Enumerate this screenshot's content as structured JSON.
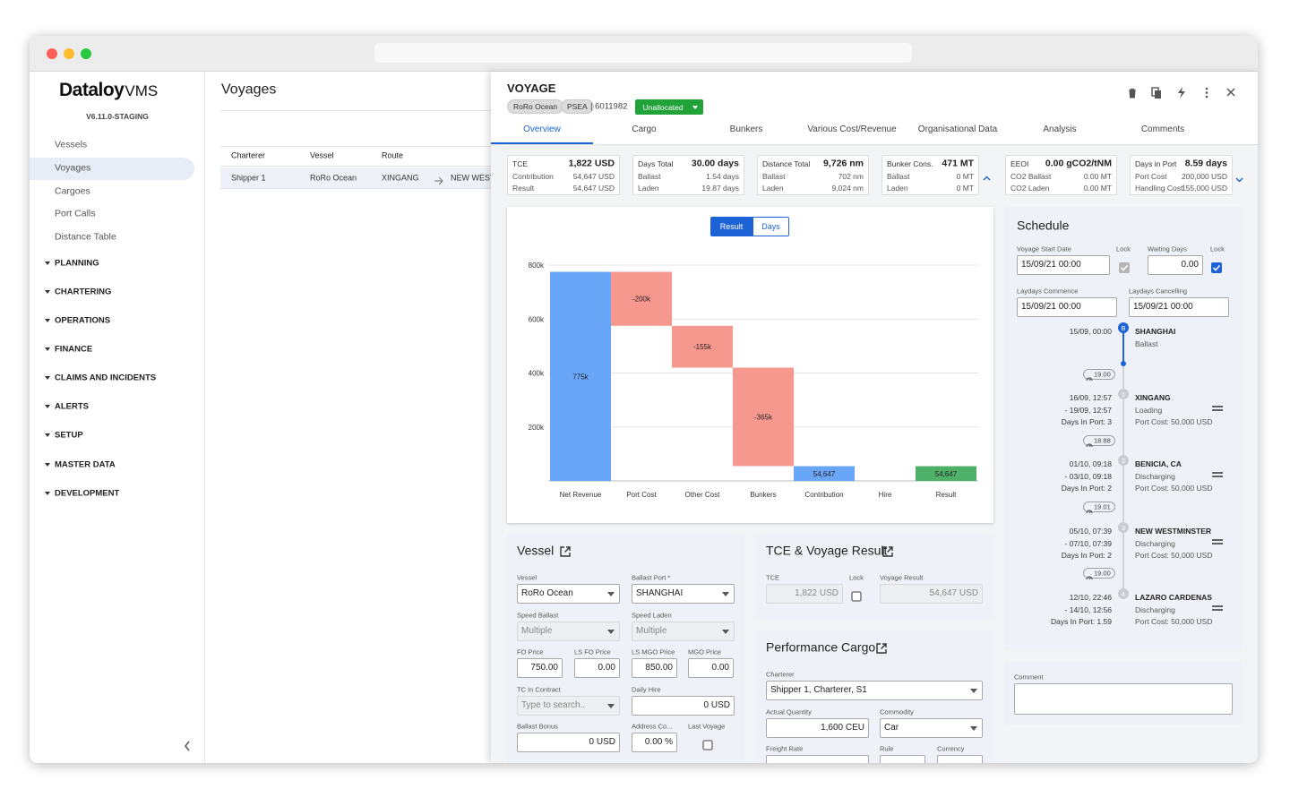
{
  "sidebar": {
    "logo": "Dataloy",
    "logo_suffix": "VMS",
    "version": "V6.11.0-STAGING",
    "nav": [
      "Vessels",
      "Voyages",
      "Cargoes",
      "Port Calls",
      "Distance Table"
    ],
    "sections": [
      "PLANNING",
      "CHARTERING",
      "OPERATIONS",
      "FINANCE",
      "CLAIMS AND INCIDENTS",
      "ALERTS",
      "SETUP",
      "MASTER DATA",
      "DEVELOPMENT"
    ]
  },
  "list": {
    "title": "Voyages",
    "columns": [
      "Charterer",
      "Vessel",
      "Route"
    ],
    "rows": [
      [
        "Shipper 1",
        "RoRo Ocean",
        "XINGANG",
        "NEW WESTMINSTER"
      ]
    ]
  },
  "voyage": {
    "title": "VOYAGE",
    "chips": [
      "RoRo Ocean",
      "PSEA"
    ],
    "number": "| 6011982",
    "status": "Unallocated",
    "tabs": [
      "Overview",
      "Cargo",
      "Bunkers",
      "Various Cost/Revenue",
      "Organisational Data",
      "Analysis",
      "Comments"
    ],
    "kpis": [
      {
        "label": "TCE",
        "value": "1,822 USD",
        "rows": [
          [
            "Contribution",
            "54,647 USD"
          ],
          [
            "Result",
            "54,647 USD"
          ]
        ]
      },
      {
        "label": "Days Total",
        "value": "30.00 days",
        "rows": [
          [
            "Ballast",
            "1.54 days"
          ],
          [
            "Laden",
            "19.87 days"
          ]
        ]
      },
      {
        "label": "Distance Total",
        "value": "9,726 nm",
        "rows": [
          [
            "Ballast",
            "702 nm"
          ],
          [
            "Laden",
            "9,024 nm"
          ]
        ]
      },
      {
        "label": "Bunker Cons.",
        "value": "471 MT",
        "rows": [
          [
            "Ballast",
            "0 MT"
          ],
          [
            "Laden",
            "0 MT"
          ]
        ]
      },
      {
        "label": "EEOI",
        "value": "0.00 gCO2/tNM",
        "rows": [
          [
            "CO2 Ballast",
            "0.00 MT"
          ],
          [
            "CO2 Laden",
            "0.00 MT"
          ]
        ]
      },
      {
        "label": "Days in Port",
        "value": "8.59 days",
        "rows": [
          [
            "Port Cost",
            "200,000 USD"
          ],
          [
            "Handling Cost",
            "155,000 USD"
          ]
        ]
      }
    ]
  },
  "chart_data": {
    "type": "waterfall",
    "buttons": [
      "Result",
      "Days"
    ],
    "categories": [
      "Net Revenue",
      "Port Cost",
      "Other Cost",
      "Bunkers",
      "Contribution",
      "Hire",
      "Result"
    ],
    "values": [
      775000,
      -200000,
      -155000,
      -365000,
      54647,
      0,
      54647
    ],
    "value_labels": [
      "775k",
      "-200k",
      "-155k",
      "-365k",
      "54,647",
      null,
      "54,647"
    ],
    "measure": [
      "relative",
      "relative",
      "relative",
      "relative",
      "total",
      "relative",
      "total"
    ],
    "colors": [
      "#6aa6f8",
      "#f7988f",
      "#f7988f",
      "#f7988f",
      "#6aa6f8",
      "#f7988f",
      "#4fb06a"
    ],
    "ylim": [
      0,
      820000
    ],
    "yticks": [
      {
        "value": 200000,
        "label": "200k"
      },
      {
        "value": 400000,
        "label": "400k"
      },
      {
        "value": 600000,
        "label": "600k"
      },
      {
        "value": 800000,
        "label": "800k"
      }
    ],
    "grid": true
  },
  "schedule": {
    "title": "Schedule",
    "fields": [
      {
        "label": "Voyage Start Date",
        "value": "15/09/21 00:00"
      },
      {
        "label": "Lock"
      },
      {
        "label": "Waiting Days",
        "value": "0.00"
      },
      {
        "label": "Lock"
      },
      {
        "label": "Laydays Commence",
        "value": "15/09/21 00:00"
      },
      {
        "label": "Laydays Cancelling",
        "value": "15/09/21 00:00"
      }
    ],
    "stops": [
      {
        "marker": "B",
        "left": [
          "15/09, 00:00"
        ],
        "port": "SHANGHAI",
        "right": [
          "Ballast"
        ]
      },
      {
        "marker": "1",
        "left": [
          "16/09, 12:57",
          "- 19/09, 12:57",
          "Days In Port: 3"
        ],
        "port": "XINGANG",
        "right": [
          "Loading",
          "Port Cost: 50,000 USD"
        ]
      },
      {
        "marker": "2",
        "left": [
          "01/10, 09:18",
          "- 03/10, 09:18",
          "Days In Port: 2"
        ],
        "port": "BENICIA, CA",
        "right": [
          "Discharging",
          "Port Cost: 50,000 USD"
        ]
      },
      {
        "marker": "3",
        "left": [
          "05/10, 07:39",
          "- 07/10, 07:39",
          "Days In Port: 2"
        ],
        "port": "NEW WESTMINSTER",
        "right": [
          "Discharging",
          "Port Cost: 50,000 USD"
        ]
      },
      {
        "marker": "4",
        "left": [
          "12/10, 22:46",
          "- 14/10, 12:56",
          "Days In Port: 1.59"
        ],
        "port": "LAZARO CARDENAS",
        "right": [
          "Discharging",
          "Port Cost: 50,000 USD"
        ]
      }
    ],
    "speeds": [
      "19.00",
      "18.88",
      "19.01",
      "19.00"
    ]
  },
  "comment": {
    "label": "Comment"
  },
  "vessel": {
    "title": "Vessel",
    "fields": [
      {
        "label": "Vessel",
        "value": "RoRo Ocean"
      },
      {
        "label": "Ballast Port *",
        "value": "SHANGHAI"
      },
      {
        "label": "Speed Ballast",
        "value": "Multiple"
      },
      {
        "label": "Speed Laden",
        "value": "Multiple"
      },
      {
        "label": "FO Price",
        "value": "750.00"
      },
      {
        "label": "LS FO Price",
        "value": "0.00"
      },
      {
        "label": "LS MGO Price",
        "value": "850.00"
      },
      {
        "label": "MGO Price",
        "value": "0.00"
      },
      {
        "label": "TC In Contract",
        "value": "Type to search.."
      },
      {
        "label": "Daily Hire",
        "value": "0 USD"
      },
      {
        "label": "Ballast Bonus",
        "value": "0 USD"
      },
      {
        "label": "Address Co...",
        "value": "0.00 %"
      },
      {
        "label": "Last Voyage"
      }
    ]
  },
  "tce": {
    "title": "TCE & Voyage Result",
    "fields": [
      {
        "label": "TCE",
        "value": "1,822 USD"
      },
      {
        "label": "Lock"
      },
      {
        "label": "Voyage Result",
        "value": "54,647 USD"
      }
    ]
  },
  "cargo": {
    "title": "Performance Cargo",
    "fields": [
      {
        "label": "Charterer",
        "value": "Shipper 1, Charterer, S1"
      },
      {
        "label": "Actual Quantity",
        "value": "1,600 CEU"
      },
      {
        "label": "Commodity",
        "value": "Car"
      },
      {
        "label": "Freight Rate"
      },
      {
        "label": "Rule"
      },
      {
        "label": "Currency"
      }
    ]
  }
}
